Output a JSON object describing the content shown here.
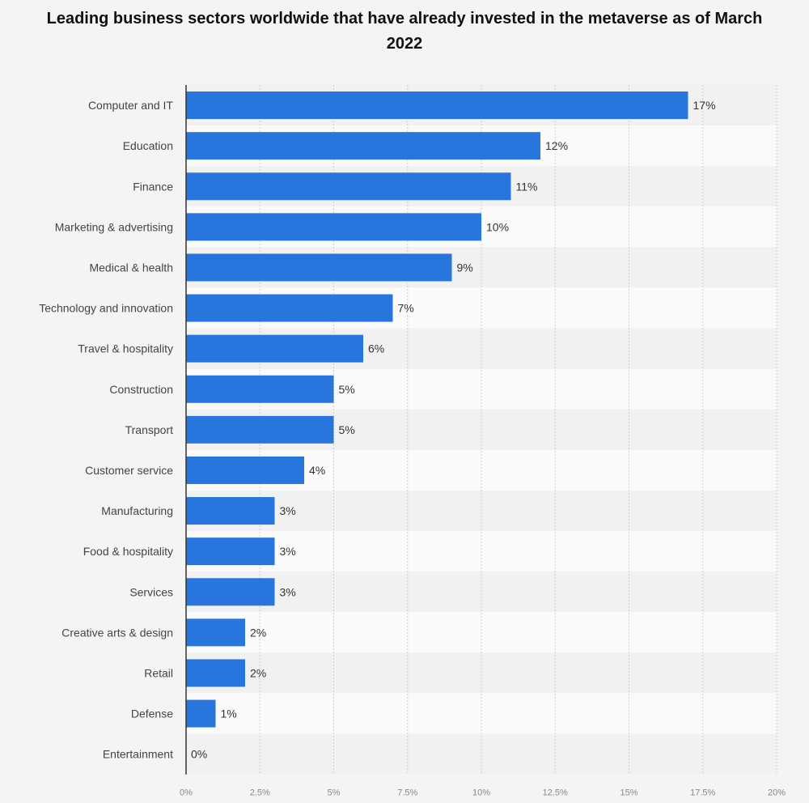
{
  "chart_data": {
    "type": "bar",
    "orientation": "horizontal",
    "title": "Leading business sectors worldwide that have already invested in the metaverse as of March 2022",
    "categories": [
      "Computer and IT",
      "Education",
      "Finance",
      "Marketing & advertising",
      "Medical & health",
      "Technology and innovation",
      "Travel & hospitality",
      "Construction",
      "Transport",
      "Customer service",
      "Manufacturing",
      "Food & hospitality",
      "Services",
      "Creative arts & design",
      "Retail",
      "Defense",
      "Entertainment"
    ],
    "values": [
      17,
      12,
      11,
      10,
      9,
      7,
      6,
      5,
      5,
      4,
      3,
      3,
      3,
      2,
      2,
      1,
      0
    ],
    "value_labels": [
      "17%",
      "12%",
      "11%",
      "10%",
      "9%",
      "7%",
      "6%",
      "5%",
      "5%",
      "4%",
      "3%",
      "3%",
      "3%",
      "2%",
      "2%",
      "1%",
      "0%"
    ],
    "xlim": [
      0,
      20
    ],
    "xticks": [
      0,
      2.5,
      5,
      7.5,
      10,
      12.5,
      15,
      17.5,
      20
    ],
    "xtick_labels": [
      "0%",
      "2.5%",
      "5%",
      "7.5%",
      "10%",
      "12.5%",
      "15%",
      "17.5%",
      "20%"
    ],
    "grid": true,
    "colors": {
      "bar": "#2876dd",
      "band_dark": "#f1f1f1",
      "band_light": "#fafafa",
      "grid": "#cfcfcf",
      "axis": "#333333"
    }
  }
}
